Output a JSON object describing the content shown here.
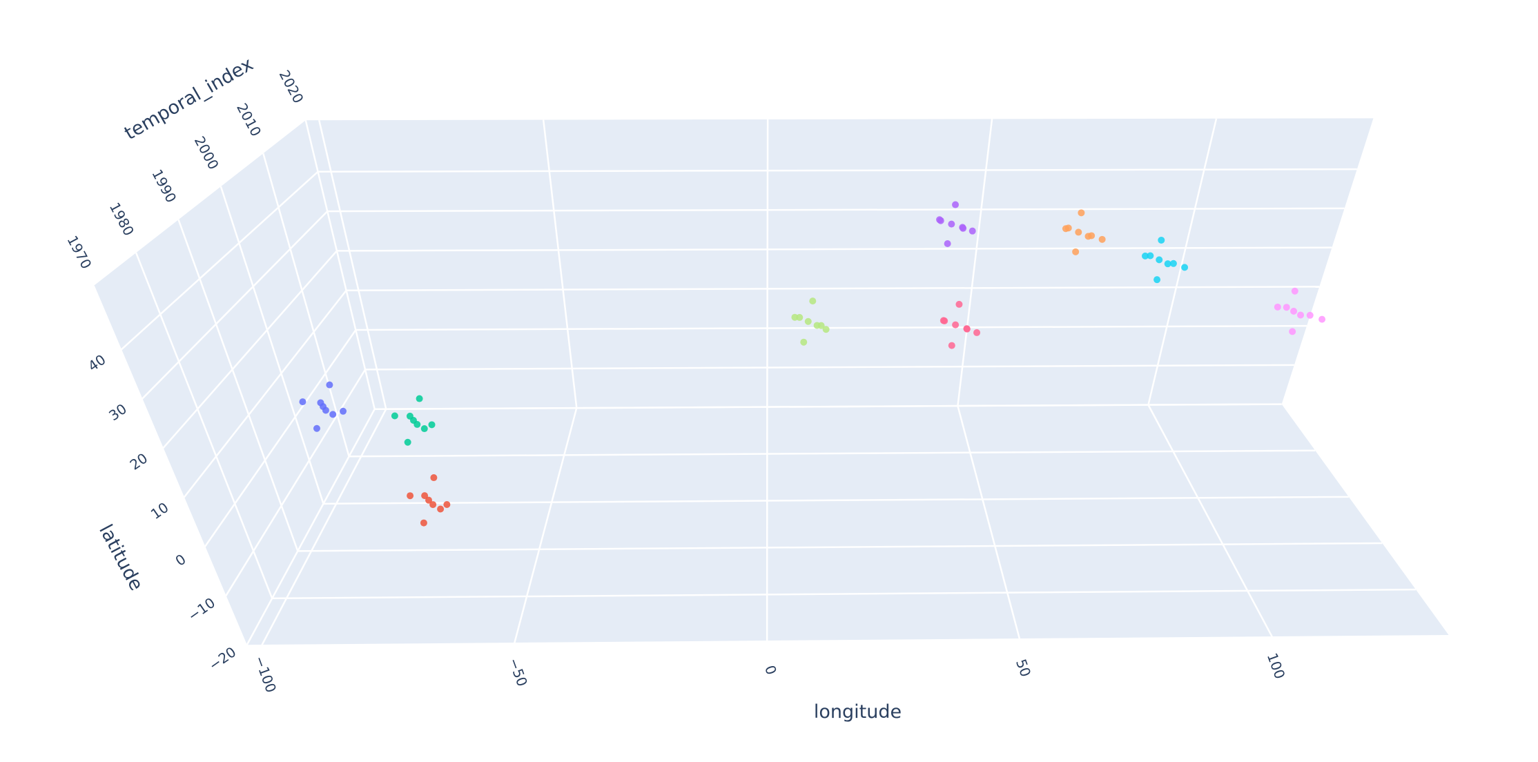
{
  "chart_data": {
    "type": "scatter3d",
    "x_label": "longitude",
    "y_label": "latitude",
    "z_label": "temporal_index",
    "xlim": [
      -103,
      135
    ],
    "ylim": [
      -20,
      53
    ],
    "zlim": [
      1970,
      2020
    ],
    "xticks": [
      {
        "value": -100,
        "label": "−100"
      },
      {
        "value": -50,
        "label": "−50"
      },
      0,
      50,
      100
    ],
    "yticks": [
      {
        "value": -20,
        "label": "−20"
      },
      {
        "value": -10,
        "label": "−10"
      },
      0,
      10,
      20,
      30,
      40
    ],
    "zticks": [
      1970,
      1980,
      1990,
      2000,
      2010,
      2020
    ],
    "grid": true,
    "series": [
      {
        "color": "#636efa",
        "x": [
          -90,
          -88,
          -92,
          -87,
          -93,
          -89,
          -91,
          -86
        ],
        "y": [
          9,
          10,
          8,
          7,
          11,
          12,
          6,
          10
        ],
        "z": [
          1993,
          1991,
          1995,
          1994,
          1992,
          1995,
          1991,
          1990
        ]
      },
      {
        "color": "#00cc96",
        "x": [
          -75,
          -73,
          -77,
          -72,
          -78,
          -74,
          -76,
          -71
        ],
        "y": [
          2,
          3,
          1,
          0,
          4,
          5,
          -1,
          3
        ],
        "z": [
          1997,
          1995,
          1999,
          1998,
          1996,
          1999,
          1995,
          1994
        ]
      },
      {
        "color": "#EF553B",
        "x": [
          -72,
          -70,
          -74,
          -69,
          -75,
          -71,
          -73,
          -68
        ],
        "y": [
          -10,
          -9,
          -11,
          -12,
          -8,
          -7,
          -13,
          -9
        ],
        "z": [
          1991,
          1989,
          1993,
          1992,
          1990,
          1993,
          1989,
          1988
        ]
      },
      {
        "color": "#B6E880",
        "x": [
          10,
          12,
          8,
          13,
          7,
          11,
          9,
          14
        ],
        "y": [
          12,
          13,
          11,
          10,
          14,
          15,
          9,
          13
        ],
        "z": [
          2010,
          2008,
          2012,
          2011,
          2009,
          2012,
          2008,
          2007
        ]
      },
      {
        "color": "#ab63fa",
        "x": [
          42,
          44,
          40,
          45,
          39,
          43,
          41,
          46
        ],
        "y": [
          31,
          32,
          30,
          29,
          33,
          34,
          28,
          32
        ],
        "z": [
          2015,
          2013,
          2017,
          2016,
          2014,
          2017,
          2013,
          2012
        ]
      },
      {
        "color": "#FF6692",
        "x": [
          43,
          45,
          41,
          46,
          40,
          44,
          42,
          47
        ],
        "y": [
          13,
          14,
          12,
          11,
          15,
          16,
          10,
          14
        ],
        "z": [
          2008,
          2006,
          2010,
          2009,
          2007,
          2010,
          2006,
          2005
        ]
      },
      {
        "color": "#FFA15A",
        "x": [
          72,
          74,
          70,
          75,
          69,
          73,
          71,
          76
        ],
        "y": [
          27,
          28,
          26,
          25,
          29,
          30,
          24,
          28
        ],
        "z": [
          2017,
          2015,
          2019,
          2018,
          2016,
          2019,
          2015,
          2014
        ]
      },
      {
        "color": "#19d3f3",
        "x": [
          92,
          94,
          90,
          95,
          89,
          93,
          91,
          96
        ],
        "y": [
          20,
          21,
          19,
          18,
          22,
          23,
          17,
          21
        ],
        "z": [
          2017,
          2015,
          2019,
          2018,
          2016,
          2019,
          2015,
          2014
        ]
      },
      {
        "color": "#FF97FF",
        "x": [
          125,
          127,
          123,
          128,
          122,
          126,
          124,
          129
        ],
        "y": [
          9,
          10,
          8,
          7,
          11,
          12,
          6,
          10
        ],
        "z": [
          2015,
          2013,
          2017,
          2016,
          2014,
          2017,
          2013,
          2012
        ]
      }
    ]
  }
}
